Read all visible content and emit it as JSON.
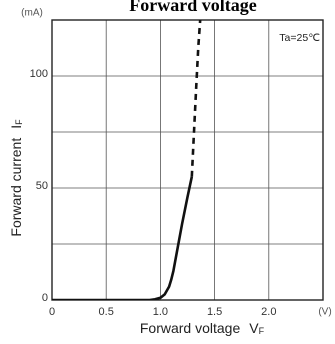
{
  "chart_data": {
    "type": "line",
    "title": "Forward voltage",
    "xlabel": "Forward voltage",
    "xlabel_symbol": "V",
    "xlabel_subscript": "F",
    "ylabel": "Forward current",
    "ylabel_symbol": "I",
    "ylabel_subscript": "F",
    "x_unit": "(V)",
    "y_unit": "(mA)",
    "xlim": [
      0,
      2.5
    ],
    "ylim": [
      0,
      125
    ],
    "x_ticks": [
      0,
      0.5,
      1.0,
      1.5,
      2.0
    ],
    "x_tick_labels": [
      "0",
      "0.5",
      "1.0",
      "1.5",
      "2.0"
    ],
    "y_ticks": [
      0,
      50,
      100
    ],
    "y_tick_labels": [
      "0",
      "50",
      "100"
    ],
    "x_grid": [
      0.5,
      1.0,
      1.5,
      2.0
    ],
    "y_grid": [
      25,
      50,
      75,
      100
    ],
    "grid": true,
    "annotation": "Ta=25℃",
    "annotation_position": "top-right",
    "series": [
      {
        "style": "solid",
        "x": [
          0,
          0.5,
          0.9,
          0.95,
          1.0,
          1.04,
          1.08,
          1.1,
          1.12,
          1.15,
          1.2,
          1.25,
          1.29
        ],
        "y": [
          0,
          0,
          0,
          0.3,
          1.0,
          2.5,
          6,
          9,
          13,
          21,
          34,
          46,
          55
        ]
      },
      {
        "style": "dashed",
        "x": [
          1.29,
          1.31,
          1.33,
          1.35,
          1.37
        ],
        "y": [
          55,
          75,
          95,
          113,
          127
        ]
      }
    ]
  }
}
